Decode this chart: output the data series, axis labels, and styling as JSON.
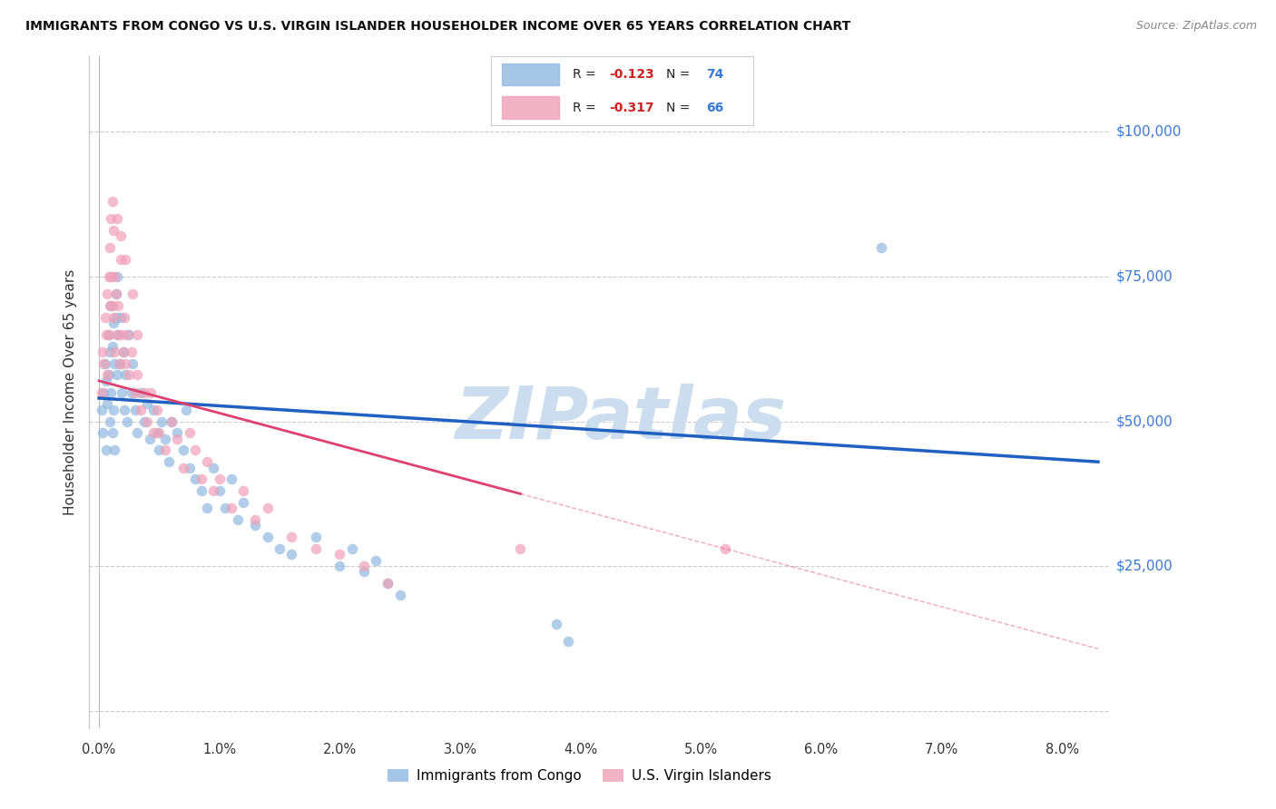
{
  "title": "IMMIGRANTS FROM CONGO VS U.S. VIRGIN ISLANDER HOUSEHOLDER INCOME OVER 65 YEARS CORRELATION CHART",
  "source": "Source: ZipAtlas.com",
  "ylabel": "Householder Income Over 65 years",
  "ytick_vals": [
    25000,
    50000,
    75000,
    100000
  ],
  "ytick_labels": [
    "$25,000",
    "$50,000",
    "$75,000",
    "$100,000"
  ],
  "xlim": [
    -0.08,
    8.4
  ],
  "ylim": [
    -3000,
    113000
  ],
  "blue_color": "#90b8e0",
  "pink_color": "#f0a0b8",
  "blue_line_color": "#2060c0",
  "pink_line_color": "#e04070",
  "watermark": "ZIPatlas",
  "watermark_color": "#ccddf0",
  "r_blue": -0.123,
  "n_blue": 74,
  "r_pink": -0.317,
  "n_pink": 66,
  "congo_x": [
    0.02,
    0.03,
    0.04,
    0.05,
    0.06,
    0.07,
    0.08,
    0.08,
    0.09,
    0.09,
    0.1,
    0.1,
    0.11,
    0.11,
    0.12,
    0.12,
    0.13,
    0.13,
    0.14,
    0.15,
    0.15,
    0.16,
    0.17,
    0.18,
    0.19,
    0.2,
    0.21,
    0.22,
    0.23,
    0.25,
    0.27,
    0.28,
    0.3,
    0.32,
    0.35,
    0.38,
    0.4,
    0.42,
    0.45,
    0.48,
    0.5,
    0.52,
    0.55,
    0.58,
    0.6,
    0.65,
    0.7,
    0.72,
    0.75,
    0.8,
    0.85,
    0.9,
    0.95,
    1.0,
    1.05,
    1.1,
    1.15,
    1.2,
    1.3,
    1.4,
    1.5,
    1.6,
    1.8,
    2.0,
    2.1,
    2.2,
    2.3,
    2.4,
    2.5,
    3.8,
    3.9,
    6.5,
    0.06,
    0.14
  ],
  "congo_y": [
    52000,
    48000,
    55000,
    60000,
    57000,
    53000,
    65000,
    58000,
    62000,
    50000,
    70000,
    55000,
    63000,
    48000,
    67000,
    52000,
    60000,
    45000,
    72000,
    75000,
    58000,
    65000,
    60000,
    68000,
    55000,
    62000,
    52000,
    58000,
    50000,
    65000,
    55000,
    60000,
    52000,
    48000,
    55000,
    50000,
    53000,
    47000,
    52000,
    48000,
    45000,
    50000,
    47000,
    43000,
    50000,
    48000,
    45000,
    52000,
    42000,
    40000,
    38000,
    35000,
    42000,
    38000,
    35000,
    40000,
    33000,
    36000,
    32000,
    30000,
    28000,
    27000,
    30000,
    25000,
    28000,
    24000,
    26000,
    22000,
    20000,
    15000,
    12000,
    80000,
    45000,
    68000
  ],
  "vi_x": [
    0.02,
    0.03,
    0.04,
    0.05,
    0.06,
    0.07,
    0.07,
    0.08,
    0.08,
    0.09,
    0.09,
    0.1,
    0.1,
    0.11,
    0.11,
    0.12,
    0.12,
    0.13,
    0.13,
    0.14,
    0.15,
    0.16,
    0.17,
    0.18,
    0.19,
    0.2,
    0.21,
    0.22,
    0.23,
    0.25,
    0.27,
    0.3,
    0.32,
    0.35,
    0.38,
    0.4,
    0.43,
    0.45,
    0.48,
    0.5,
    0.55,
    0.6,
    0.65,
    0.7,
    0.75,
    0.8,
    0.85,
    0.9,
    0.95,
    1.0,
    1.1,
    1.2,
    1.3,
    1.4,
    1.6,
    1.8,
    2.0,
    2.2,
    2.4,
    3.5,
    5.2,
    0.15,
    0.18,
    0.22,
    0.28,
    0.32
  ],
  "vi_y": [
    55000,
    62000,
    60000,
    68000,
    65000,
    72000,
    58000,
    75000,
    65000,
    80000,
    70000,
    85000,
    75000,
    88000,
    70000,
    83000,
    68000,
    75000,
    62000,
    72000,
    65000,
    70000,
    60000,
    78000,
    65000,
    62000,
    68000,
    60000,
    65000,
    58000,
    62000,
    55000,
    58000,
    52000,
    55000,
    50000,
    55000,
    48000,
    52000,
    48000,
    45000,
    50000,
    47000,
    42000,
    48000,
    45000,
    40000,
    43000,
    38000,
    40000,
    35000,
    38000,
    33000,
    35000,
    30000,
    28000,
    27000,
    25000,
    22000,
    28000,
    28000,
    85000,
    82000,
    78000,
    72000,
    65000
  ]
}
